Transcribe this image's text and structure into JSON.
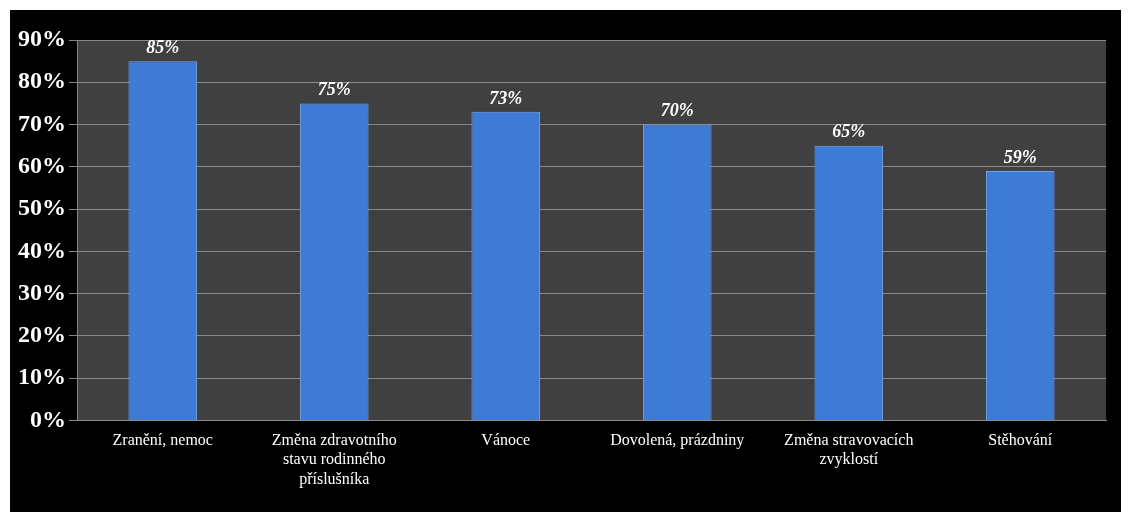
{
  "chart_data": {
    "type": "bar",
    "categories": [
      "Zranění, nemoc",
      "Změna zdravotního stavu rodinného příslušníka",
      "Vánoce",
      "Dovolená, prázdniny",
      "Změna stravovacích zvyklostí",
      "Stěhování"
    ],
    "values": [
      85,
      75,
      73,
      70,
      65,
      59
    ],
    "value_labels": [
      "85%",
      "75%",
      "73%",
      "70%",
      "65%",
      "59%"
    ],
    "color": "#3d7bd4",
    "ylim": [
      0,
      90
    ],
    "yticks": [
      {
        "value": 0,
        "label": "0%"
      },
      {
        "value": 10,
        "label": "10%"
      },
      {
        "value": 20,
        "label": "20%"
      },
      {
        "value": 30,
        "label": "30%"
      },
      {
        "value": 40,
        "label": "40%"
      },
      {
        "value": 50,
        "label": "50%"
      },
      {
        "value": 60,
        "label": "60%"
      },
      {
        "value": 70,
        "label": "70%"
      },
      {
        "value": 80,
        "label": "80%"
      },
      {
        "value": 90,
        "label": "90%"
      }
    ],
    "grid": "y",
    "legend": false
  }
}
